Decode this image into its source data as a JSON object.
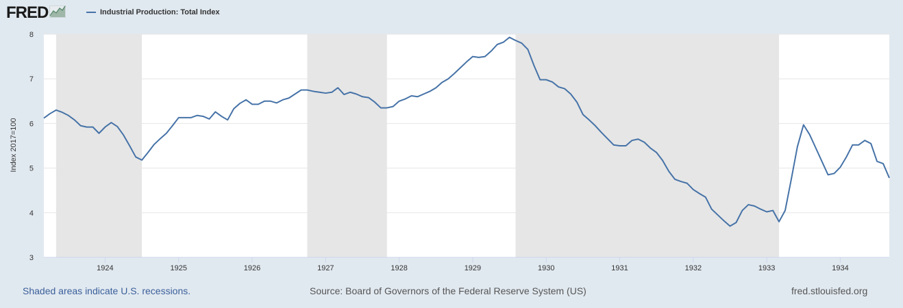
{
  "header": {
    "logo_text": "FRED",
    "logo_icon": "chart-line-icon",
    "series_label": "Industrial Production: Total Index"
  },
  "colors": {
    "background": "#e1e9f0",
    "plot_background": "#ffffff",
    "recession_shade": "#e6e6e6",
    "series_line": "#4572a7",
    "grid": "#e6e6e6"
  },
  "footer": {
    "recession_note": "Shaded areas indicate U.S. recessions.",
    "source": "Source: Board of Governors of the Federal Reserve System (US)",
    "site": "fred.stlouisfed.org"
  },
  "chart_data": {
    "type": "line",
    "title": "",
    "xlabel": "",
    "ylabel": "Index 2017=100",
    "xlim": [
      "1923-03",
      "1934-09"
    ],
    "ylim": [
      3,
      8
    ],
    "yticks": [
      3,
      4,
      5,
      6,
      7,
      8
    ],
    "xticks": [
      "1924",
      "1925",
      "1926",
      "1927",
      "1928",
      "1929",
      "1930",
      "1931",
      "1932",
      "1933",
      "1934"
    ],
    "grid": true,
    "legend_position": "top-left",
    "recessions": [
      [
        "1923-05",
        "1924-07"
      ],
      [
        "1926-10",
        "1927-11"
      ],
      [
        "1929-08",
        "1933-03"
      ]
    ],
    "series": [
      {
        "name": "Industrial Production: Total Index",
        "x": [
          "1923-03",
          "1923-04",
          "1923-05",
          "1923-06",
          "1923-07",
          "1923-08",
          "1923-09",
          "1923-10",
          "1923-11",
          "1923-12",
          "1924-01",
          "1924-02",
          "1924-03",
          "1924-04",
          "1924-05",
          "1924-06",
          "1924-07",
          "1924-08",
          "1924-09",
          "1924-10",
          "1924-11",
          "1924-12",
          "1925-01",
          "1925-02",
          "1925-03",
          "1925-04",
          "1925-05",
          "1925-06",
          "1925-07",
          "1925-08",
          "1925-09",
          "1925-10",
          "1925-11",
          "1925-12",
          "1926-01",
          "1926-02",
          "1926-03",
          "1926-04",
          "1926-05",
          "1926-06",
          "1926-07",
          "1926-08",
          "1926-09",
          "1926-10",
          "1926-11",
          "1926-12",
          "1927-01",
          "1927-02",
          "1927-03",
          "1927-04",
          "1927-05",
          "1927-06",
          "1927-07",
          "1927-08",
          "1927-09",
          "1927-10",
          "1927-11",
          "1927-12",
          "1928-01",
          "1928-02",
          "1928-03",
          "1928-04",
          "1928-05",
          "1928-06",
          "1928-07",
          "1928-08",
          "1928-09",
          "1928-10",
          "1928-11",
          "1928-12",
          "1929-01",
          "1929-02",
          "1929-03",
          "1929-04",
          "1929-05",
          "1929-06",
          "1929-07",
          "1929-08",
          "1929-09",
          "1929-10",
          "1929-11",
          "1929-12",
          "1930-01",
          "1930-02",
          "1930-03",
          "1930-04",
          "1930-05",
          "1930-06",
          "1930-07",
          "1930-08",
          "1930-09",
          "1930-10",
          "1930-11",
          "1930-12",
          "1931-01",
          "1931-02",
          "1931-03",
          "1931-04",
          "1931-05",
          "1931-06",
          "1931-07",
          "1931-08",
          "1931-09",
          "1931-10",
          "1931-11",
          "1931-12",
          "1932-01",
          "1932-02",
          "1932-03",
          "1932-04",
          "1932-05",
          "1932-06",
          "1932-07",
          "1932-08",
          "1932-09",
          "1932-10",
          "1932-11",
          "1932-12",
          "1933-01",
          "1933-02",
          "1933-03",
          "1933-04",
          "1933-05",
          "1933-06",
          "1933-07",
          "1933-08",
          "1933-09",
          "1933-10",
          "1933-11",
          "1933-12",
          "1934-01",
          "1934-02",
          "1934-03",
          "1934-04",
          "1934-05",
          "1934-06",
          "1934-07",
          "1934-08",
          "1934-09"
        ],
        "values": [
          6.12,
          6.22,
          6.3,
          6.25,
          6.18,
          6.08,
          5.95,
          5.92,
          5.92,
          5.78,
          5.92,
          6.02,
          5.93,
          5.74,
          5.5,
          5.25,
          5.18,
          5.35,
          5.53,
          5.66,
          5.78,
          5.95,
          6.13,
          6.13,
          6.13,
          6.18,
          6.16,
          6.1,
          6.26,
          6.16,
          6.08,
          6.33,
          6.45,
          6.53,
          6.43,
          6.43,
          6.5,
          6.5,
          6.46,
          6.53,
          6.57,
          6.66,
          6.75,
          6.75,
          6.72,
          6.7,
          6.68,
          6.7,
          6.8,
          6.65,
          6.7,
          6.66,
          6.6,
          6.58,
          6.48,
          6.35,
          6.35,
          6.38,
          6.5,
          6.55,
          6.62,
          6.6,
          6.66,
          6.72,
          6.8,
          6.92,
          7.0,
          7.12,
          7.25,
          7.38,
          7.5,
          7.48,
          7.5,
          7.62,
          7.77,
          7.82,
          7.93,
          7.86,
          7.8,
          7.66,
          7.3,
          6.98,
          6.98,
          6.93,
          6.82,
          6.78,
          6.66,
          6.48,
          6.2,
          6.08,
          5.95,
          5.8,
          5.66,
          5.52,
          5.5,
          5.5,
          5.62,
          5.65,
          5.58,
          5.45,
          5.35,
          5.17,
          4.93,
          4.75,
          4.7,
          4.66,
          4.52,
          4.43,
          4.35,
          4.08,
          3.95,
          3.82,
          3.7,
          3.78,
          4.05,
          4.18,
          4.15,
          4.08,
          4.02,
          4.05,
          3.8,
          4.05,
          4.75,
          5.48,
          5.97,
          5.75,
          5.45,
          5.15,
          4.85,
          4.88,
          5.02,
          5.25,
          5.52,
          5.52,
          5.62,
          5.55,
          5.15,
          5.1,
          4.78
        ]
      }
    ]
  }
}
